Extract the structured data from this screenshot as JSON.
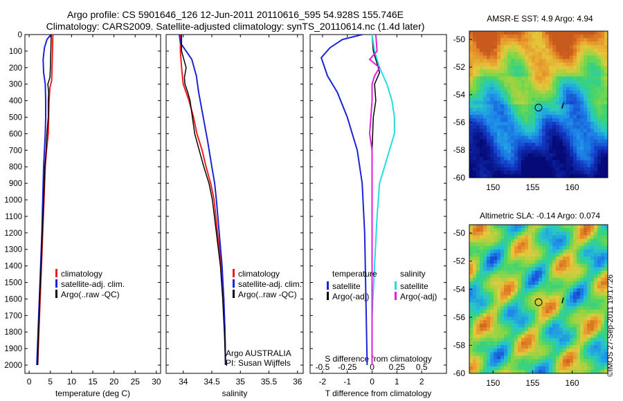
{
  "header": {
    "line1": "Argo profile: CS 5901646_126 12-Jun-2011 20110616_595 54.928S 155.746E",
    "line2": "Climatology: CARS2009. Satellite-adjusted climatology: synTS_20110614.nc (1.4d later)"
  },
  "colors": {
    "climatology": "#ee1c1c",
    "satellite": "#1a22d6",
    "argo": "#000000",
    "sal_satellite": "#22dde0",
    "sal_argo": "#e01ee0"
  },
  "chart_data": [
    {
      "type": "line",
      "xlabel": "temperature (deg C)",
      "ylabel": "",
      "xlim": [
        -1,
        31
      ],
      "ylim": [
        2050,
        0
      ],
      "y_reversed": true,
      "xticks": [
        0,
        5,
        10,
        15,
        20,
        25,
        30
      ],
      "yticks": [
        0,
        100,
        200,
        300,
        400,
        500,
        600,
        700,
        800,
        900,
        1000,
        1100,
        1200,
        1300,
        1400,
        1500,
        1600,
        1700,
        1800,
        1900,
        2000
      ],
      "legend": [
        "climatology",
        "satellite-adj. clim.",
        "Argo(..raw -QC)"
      ],
      "legend_position": "bottom-center",
      "series": [
        {
          "name": "climatology",
          "color_key": "climatology",
          "points": [
            [
              5.6,
              0
            ],
            [
              5.5,
              100
            ],
            [
              5.4,
              200
            ],
            [
              5.3,
              280
            ],
            [
              4.9,
              320
            ],
            [
              4.7,
              400
            ],
            [
              4.6,
              500
            ],
            [
              4.5,
              600
            ],
            [
              4.1,
              700
            ],
            [
              3.8,
              800
            ],
            [
              3.5,
              1000
            ],
            [
              3.2,
              1200
            ],
            [
              2.9,
              1400
            ],
            [
              2.6,
              1600
            ],
            [
              2.3,
              1800
            ],
            [
              2.0,
              2000
            ]
          ]
        },
        {
          "name": "satellite-adj. clim.",
          "color_key": "satellite",
          "points": [
            [
              5.1,
              0
            ],
            [
              4.2,
              30
            ],
            [
              3.6,
              80
            ],
            [
              3.3,
              150
            ],
            [
              3.4,
              230
            ],
            [
              3.8,
              300
            ],
            [
              3.9,
              400
            ],
            [
              3.9,
              500
            ],
            [
              3.8,
              600
            ],
            [
              3.6,
              700
            ],
            [
              3.4,
              800
            ],
            [
              3.2,
              1000
            ],
            [
              3.0,
              1200
            ],
            [
              2.7,
              1400
            ],
            [
              2.4,
              1600
            ],
            [
              2.1,
              1800
            ],
            [
              1.8,
              2000
            ]
          ]
        },
        {
          "name": "Argo(..raw -QC)",
          "color_key": "argo",
          "points": [
            [
              5.2,
              0
            ],
            [
              5.1,
              100
            ],
            [
              5.0,
              200
            ],
            [
              4.9,
              260
            ],
            [
              4.4,
              300
            ],
            [
              4.6,
              350
            ],
            [
              4.5,
              400
            ],
            [
              4.5,
              500
            ],
            [
              4.2,
              600
            ],
            [
              4.0,
              700
            ],
            [
              3.7,
              800
            ],
            [
              3.4,
              1000
            ],
            [
              3.1,
              1200
            ],
            [
              2.8,
              1400
            ],
            [
              2.5,
              1600
            ],
            [
              2.2,
              1800
            ],
            [
              2.0,
              2000
            ]
          ]
        }
      ]
    },
    {
      "type": "line",
      "xlabel": "salinity",
      "xlim": [
        33.7,
        36.1
      ],
      "ylim": [
        2050,
        0
      ],
      "y_reversed": true,
      "xticks": [
        34,
        34.5,
        35,
        35.5,
        36
      ],
      "legend": [
        "climatology",
        "satellite-adj. clim.",
        "Argo(..raw -QC)"
      ],
      "legend_position": "bottom-center",
      "note_lines": [
        "Argo AUSTRALIA",
        "PI: Susan Wijffels"
      ],
      "series": [
        {
          "name": "climatology",
          "color_key": "climatology",
          "points": [
            [
              33.95,
              0
            ],
            [
              33.95,
              100
            ],
            [
              33.97,
              200
            ],
            [
              34.0,
              300
            ],
            [
              34.1,
              400
            ],
            [
              34.18,
              500
            ],
            [
              34.24,
              600
            ],
            [
              34.33,
              700
            ],
            [
              34.4,
              800
            ],
            [
              34.48,
              900
            ],
            [
              34.54,
              1000
            ],
            [
              34.6,
              1200
            ],
            [
              34.67,
              1400
            ],
            [
              34.71,
              1600
            ],
            [
              34.73,
              1800
            ],
            [
              34.74,
              2000
            ]
          ]
        },
        {
          "name": "satellite-adj. clim.",
          "color_key": "satellite",
          "points": [
            [
              33.93,
              0
            ],
            [
              33.95,
              50
            ],
            [
              34.05,
              100
            ],
            [
              34.15,
              150
            ],
            [
              34.23,
              250
            ],
            [
              34.27,
              350
            ],
            [
              34.35,
              500
            ],
            [
              34.43,
              650
            ],
            [
              34.5,
              800
            ],
            [
              34.55,
              900
            ],
            [
              34.58,
              1000
            ],
            [
              34.63,
              1200
            ],
            [
              34.68,
              1400
            ],
            [
              34.71,
              1600
            ],
            [
              34.73,
              1800
            ],
            [
              34.74,
              2000
            ]
          ]
        },
        {
          "name": "Argo(..raw -QC)",
          "color_key": "argo",
          "points": [
            [
              33.97,
              0
            ],
            [
              33.97,
              100
            ],
            [
              34.05,
              200
            ],
            [
              34.02,
              260
            ],
            [
              34.03,
              300
            ],
            [
              34.08,
              350
            ],
            [
              34.12,
              400
            ],
            [
              34.16,
              500
            ],
            [
              34.2,
              600
            ],
            [
              34.28,
              700
            ],
            [
              34.36,
              800
            ],
            [
              34.45,
              900
            ],
            [
              34.51,
              1000
            ],
            [
              34.58,
              1200
            ],
            [
              34.65,
              1400
            ],
            [
              34.69,
              1600
            ],
            [
              34.72,
              1800
            ],
            [
              34.74,
              2000
            ]
          ]
        }
      ]
    },
    {
      "type": "line",
      "xlabel": "T difference from climatology",
      "x2label": "S difference from climatology",
      "xlim": [
        -2.5,
        3
      ],
      "ylim": [
        2050,
        0
      ],
      "y_reversed": true,
      "xticks": [
        -2,
        -1,
        0,
        1,
        2
      ],
      "x2ticks_labels": [
        "-0.5",
        "-0.25",
        "0",
        "0.25",
        "0.5"
      ],
      "x2ticks_positions": [
        -2,
        -1,
        0,
        1,
        2
      ],
      "legend_groups": [
        {
          "title": "temperature",
          "items": [
            {
              "label": "satellite",
              "color_key": "satellite"
            },
            {
              "label": "Argo(-adj)",
              "color_key": "argo"
            }
          ]
        },
        {
          "title": "salinity",
          "items": [
            {
              "label": "satellite",
              "color_key": "sal_satellite"
            },
            {
              "label": "Argo(-adj)",
              "color_key": "sal_argo"
            }
          ]
        }
      ],
      "series": [
        {
          "name": "temperature satellite",
          "color_key": "satellite",
          "points": [
            [
              -0.4,
              0
            ],
            [
              -1.2,
              30
            ],
            [
              -1.7,
              80
            ],
            [
              -2.05,
              140
            ],
            [
              -1.8,
              250
            ],
            [
              -1.4,
              350
            ],
            [
              -1.0,
              500
            ],
            [
              -0.8,
              600
            ],
            [
              -0.6,
              700
            ],
            [
              -0.4,
              900
            ],
            [
              -0.3,
              1200
            ],
            [
              -0.25,
              1600
            ],
            [
              -0.2,
              2000
            ]
          ]
        },
        {
          "name": "temperature Argo(-adj)",
          "color_key": "argo",
          "points": [
            [
              0.0,
              0
            ],
            [
              0.05,
              100
            ],
            [
              0.25,
              200
            ],
            [
              0.3,
              230
            ],
            [
              0.1,
              300
            ],
            [
              0.15,
              400
            ],
            [
              0.05,
              500
            ],
            [
              0.0,
              700
            ],
            [
              0.0,
              2000
            ]
          ]
        },
        {
          "name": "salinity satellite",
          "color_key": "sal_satellite",
          "points": [
            [
              0.0,
              0
            ],
            [
              0.1,
              100
            ],
            [
              0.3,
              200
            ],
            [
              0.6,
              300
            ],
            [
              0.8,
              400
            ],
            [
              0.9,
              500
            ],
            [
              0.9,
              600
            ],
            [
              0.7,
              700
            ],
            [
              0.5,
              800
            ],
            [
              0.3,
              900
            ],
            [
              0.2,
              1100
            ],
            [
              0.1,
              1400
            ],
            [
              0.0,
              1700
            ],
            [
              0.0,
              2000
            ]
          ]
        },
        {
          "name": "salinity Argo(-adj)",
          "color_key": "sal_argo",
          "points": [
            [
              0.15,
              0
            ],
            [
              0.2,
              100
            ],
            [
              -0.1,
              150
            ],
            [
              0.3,
              200
            ],
            [
              0.1,
              250
            ],
            [
              0.0,
              300
            ],
            [
              0.0,
              400
            ],
            [
              -0.05,
              500
            ],
            [
              -0.1,
              600
            ],
            [
              0.0,
              700
            ],
            [
              0.0,
              2000
            ]
          ]
        }
      ]
    }
  ],
  "map_sst": {
    "title": "AMSR-E SST: 4.9 Argo: 4.94",
    "xticks": [
      150,
      155,
      160
    ],
    "yticks": [
      -50,
      -52,
      -54,
      -56,
      -58,
      -60
    ],
    "marker": "circle"
  },
  "map_sla": {
    "title": "Altimetric SLA: -0.14 Argo: 0.074",
    "xticks": [
      150,
      155,
      160
    ],
    "yticks": [
      -50,
      -52,
      -54,
      -56,
      -58,
      -60
    ],
    "marker": "circle"
  },
  "footer": "©IMOS 27-Sep-2011 19:17:26"
}
